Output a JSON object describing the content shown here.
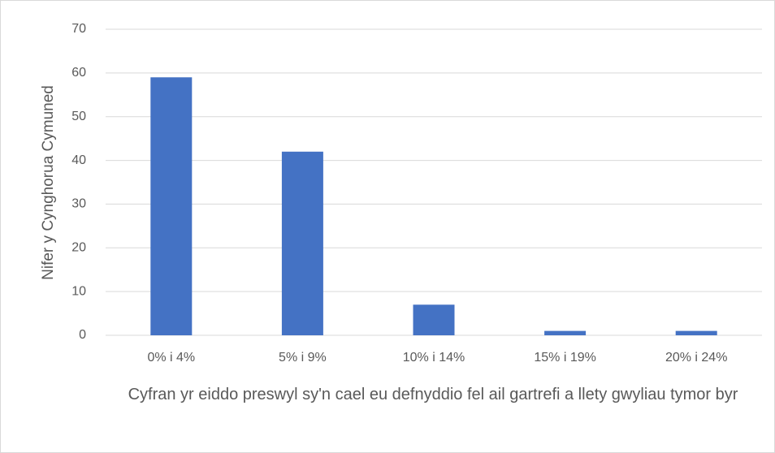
{
  "chart_data": {
    "type": "bar",
    "categories": [
      "0% i 4%",
      "5% i 9%",
      "10% i 14%",
      "15% i 19%",
      "20% i 24%"
    ],
    "values": [
      59,
      42,
      7,
      1,
      1
    ],
    "color": "#4472c4",
    "ylim": [
      0,
      70
    ],
    "yticks": [
      0,
      10,
      20,
      30,
      40,
      50,
      60,
      70
    ],
    "grid": true,
    "ylabel": "Nifer y Cynghorua Cymuned",
    "xlabel": "Cyfran yr eiddo preswyl sy'n cael eu defnyddio fel ail gartrefi a llety gwyliau tymor byr"
  }
}
